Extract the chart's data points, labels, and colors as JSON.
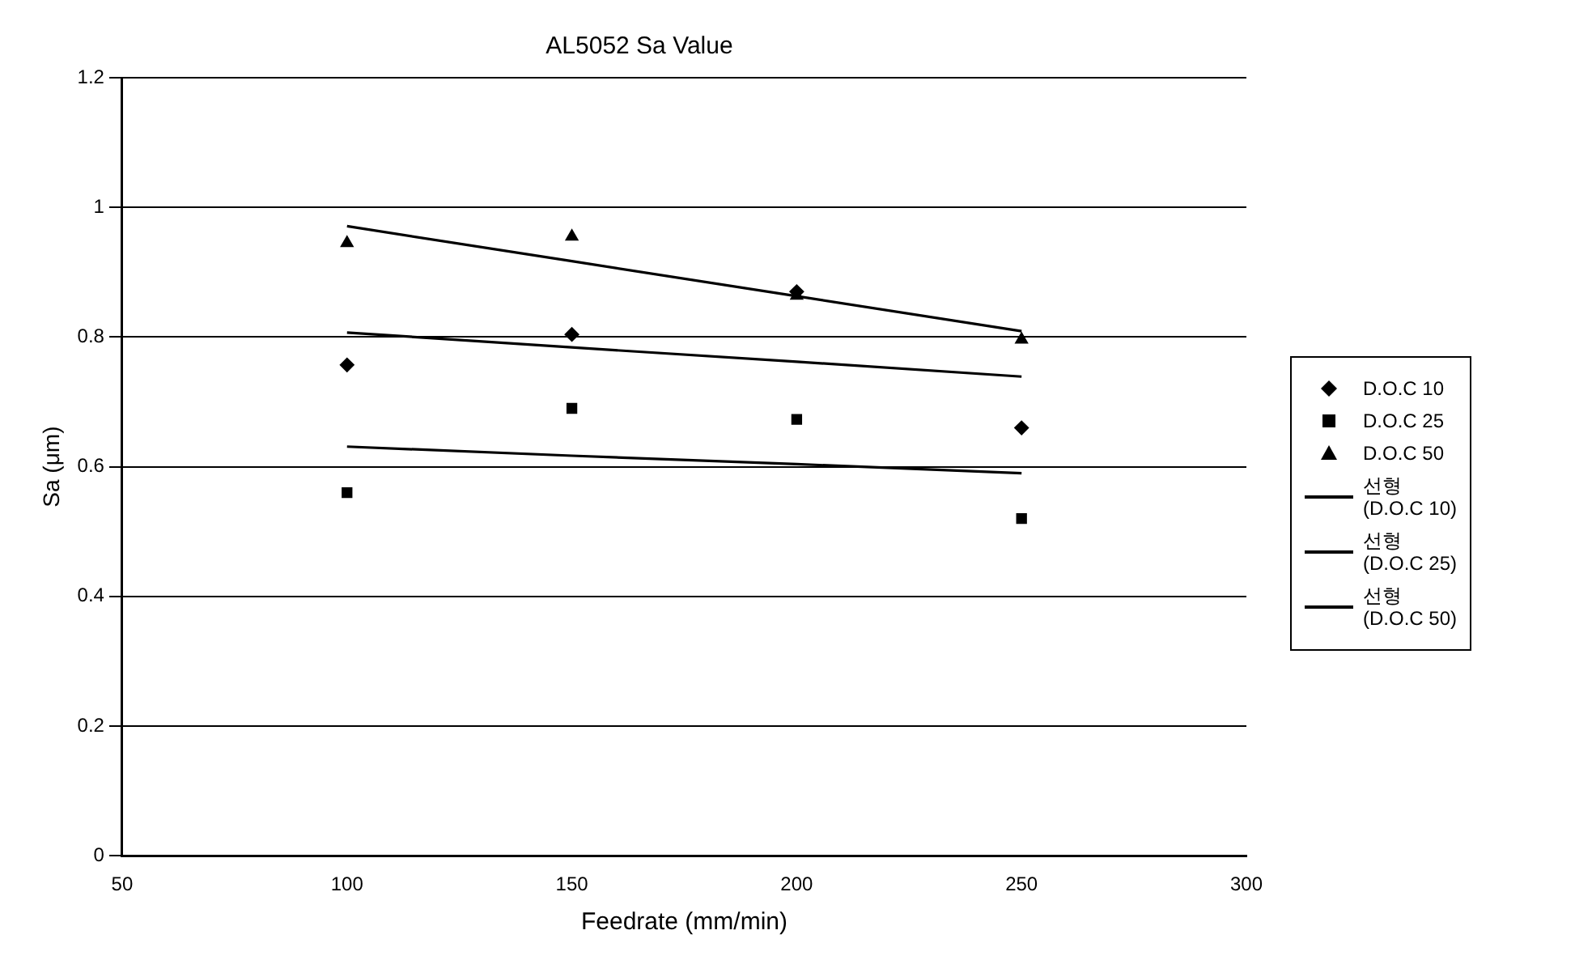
{
  "chart_data": {
    "type": "scatter",
    "title": "AL5052 Sa Value",
    "xlabel": "Feedrate (mm/min)",
    "ylabel": "Sa (μm)",
    "x": [
      100,
      150,
      200,
      250
    ],
    "series": [
      {
        "name": "D.O.C 10",
        "type": "scatter",
        "marker": "diamond",
        "color": "#000000",
        "values": [
          0.757,
          0.804,
          0.87,
          0.66
        ]
      },
      {
        "name": "D.O.C 25",
        "type": "scatter",
        "marker": "square",
        "color": "#000000",
        "values": [
          0.56,
          0.69,
          0.673,
          0.52
        ]
      },
      {
        "name": "D.O.C 50",
        "type": "scatter",
        "marker": "triangle",
        "color": "#000000",
        "values": [
          0.945,
          0.955,
          0.864,
          0.796
        ]
      },
      {
        "name": "선형\n(D.O.C 10)",
        "type": "line",
        "marker": "none",
        "line_style": "solid",
        "color": "#000000",
        "values": [
          0.807,
          0.784,
          0.762,
          0.739
        ]
      },
      {
        "name": "선형\n(D.O.C 25)",
        "type": "line",
        "marker": "none",
        "line_style": "solid",
        "color": "#000000",
        "values": [
          0.631,
          0.617,
          0.604,
          0.59
        ]
      },
      {
        "name": "선형\n(D.O.C 50)",
        "type": "line",
        "marker": "none",
        "line_style": "solid",
        "color": "#000000",
        "values": [
          0.971,
          0.917,
          0.863,
          0.809
        ]
      }
    ],
    "xlim": [
      50,
      300
    ],
    "xticks": [
      50,
      100,
      150,
      200,
      250,
      300
    ],
    "ylim": [
      0,
      1.2
    ],
    "yticks": [
      0,
      0.2,
      0.4,
      0.6,
      0.8,
      1,
      1.2
    ],
    "grid": "y",
    "legend": "right"
  }
}
